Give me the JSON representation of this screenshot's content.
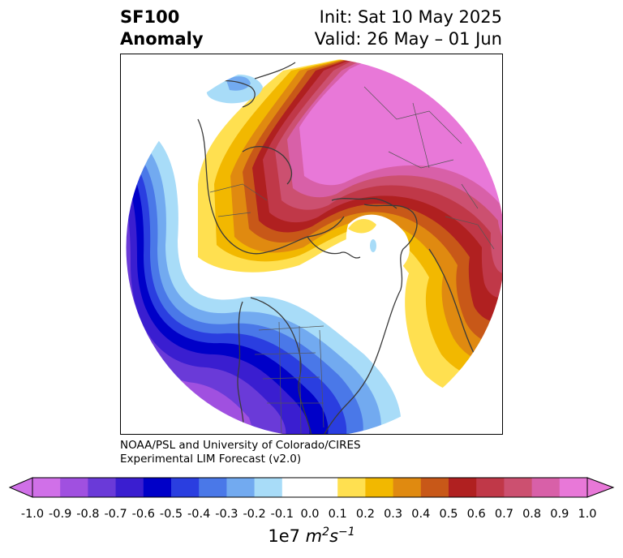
{
  "title": {
    "left_line1": "SF100",
    "left_line2": "Anomaly",
    "right_line1": "Init: Sat 10 May 2025",
    "right_line2": "Valid: 26 May – 01 Jun"
  },
  "credit": {
    "line1": "NOAA/PSL and University of Colorado/CIRES",
    "line2": "Experimental LIM Forecast (v2.0)"
  },
  "colorbar": {
    "ticks": [
      "-1.0",
      "-0.9",
      "-0.8",
      "-0.7",
      "-0.6",
      "-0.5",
      "-0.4",
      "-0.3",
      "-0.2",
      "-0.1",
      "0.0",
      "0.1",
      "0.2",
      "0.3",
      "0.4",
      "0.5",
      "0.6",
      "0.7",
      "0.8",
      "0.9",
      "1.0"
    ],
    "colors": [
      "#d070e8",
      "#a050e0",
      "#6a3ad8",
      "#3a1ed0",
      "#0000c8",
      "#2a3ee0",
      "#4a78e8",
      "#72aaf0",
      "#a8dcf8",
      "#ffffff",
      "#ffffff",
      "#ffe050",
      "#f2b800",
      "#e08a10",
      "#c85818",
      "#b02020",
      "#c03848",
      "#cc5070",
      "#d860a8",
      "#e878d8"
    ],
    "under_color": "#d070e8",
    "over_color": "#e878d8",
    "units_prefix": "1e7 ",
    "units_m": "m",
    "units_m_exp": "2",
    "units_s": "s",
    "units_s_exp": "−1"
  }
}
